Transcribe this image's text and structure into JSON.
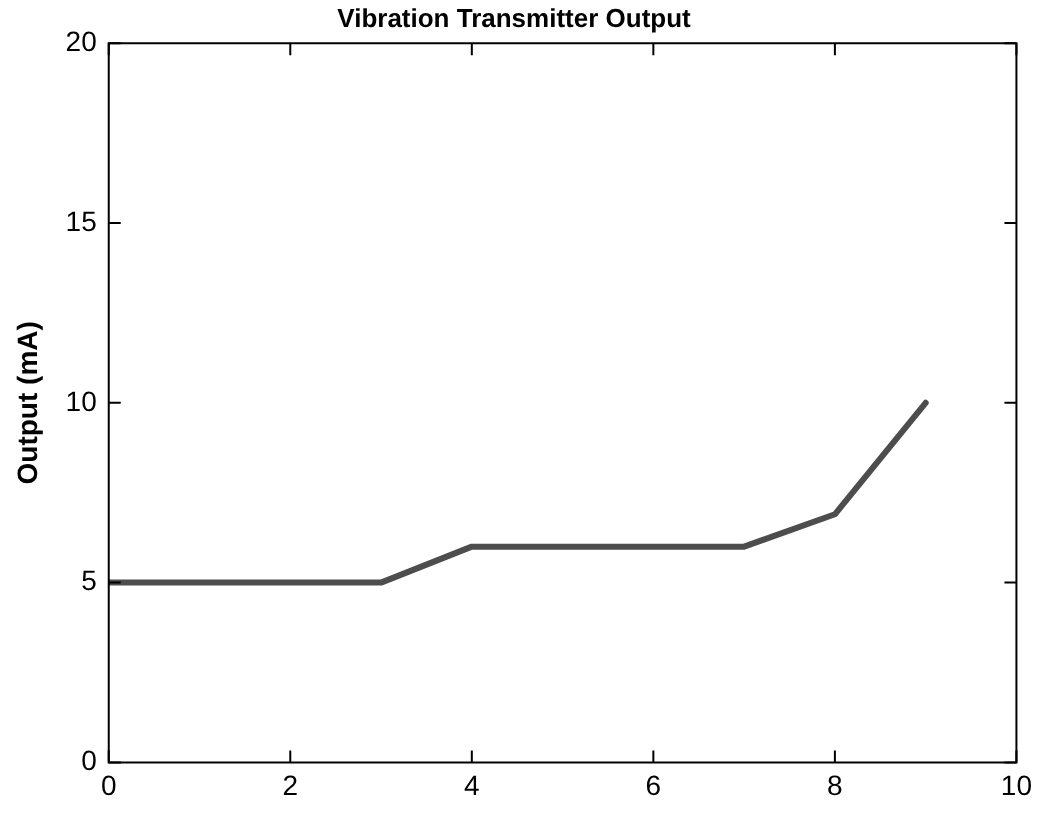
{
  "chart_data": {
    "type": "line",
    "title": "Vibration Transmitter Output",
    "ylabel": "Output (mA)",
    "x": [
      0,
      3,
      4,
      7,
      8,
      9
    ],
    "series": [
      {
        "color": "#4d4d4d",
        "values": [
          5,
          5,
          6,
          6,
          6.9,
          10
        ]
      }
    ],
    "xlim": [
      0,
      10
    ],
    "xticks": [
      0,
      2,
      4,
      6,
      8,
      10
    ],
    "ylim": [
      0,
      20
    ],
    "yticks": [
      0,
      5,
      10,
      15,
      20
    ],
    "grid": false,
    "legend": false,
    "marker": "none",
    "line_style": "solid"
  }
}
